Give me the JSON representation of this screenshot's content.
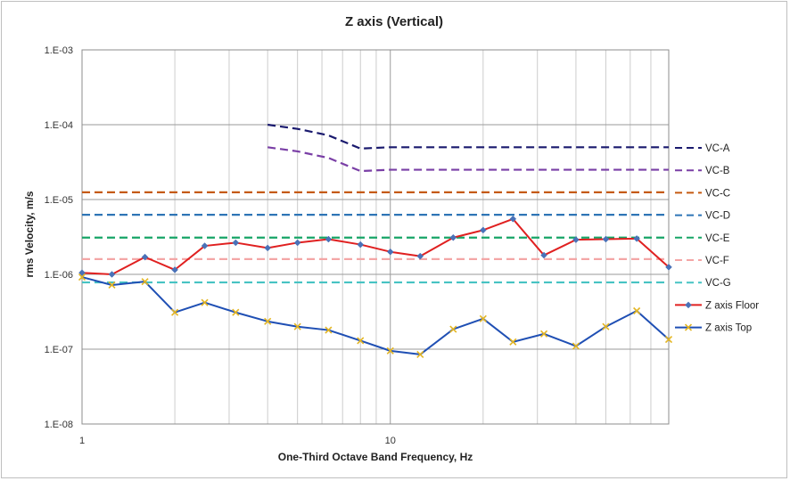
{
  "chart_data": {
    "type": "line",
    "title": "Z axis (Vertical)",
    "xlabel": "One-Third Octave Band Frequency, Hz",
    "ylabel": "rms Velocity, m/s",
    "x_scale": "log",
    "y_scale": "log",
    "xlim": [
      1,
      80
    ],
    "ylim": [
      1e-08,
      0.001
    ],
    "x_tick_labels": [
      {
        "value": 1,
        "label": "1"
      },
      {
        "value": 10,
        "label": "10"
      }
    ],
    "y_tick_labels": [
      {
        "value": 0.001,
        "label": "1.E-03"
      },
      {
        "value": 0.0001,
        "label": "1.E-04"
      },
      {
        "value": 1e-05,
        "label": "1.E-05"
      },
      {
        "value": 1e-06,
        "label": "1.E-06"
      },
      {
        "value": 1e-07,
        "label": "1.E-07"
      },
      {
        "value": 1e-08,
        "label": "1.E-08"
      }
    ],
    "grid": true,
    "legend_position": "right",
    "series": [
      {
        "name": "VC-A",
        "style": "dashed",
        "color": "#1a1a6e",
        "x": [
          4,
          5,
          6.3,
          8,
          10,
          80
        ],
        "values": [
          0.0001,
          8.8e-05,
          7.2e-05,
          4.8e-05,
          5e-05,
          5e-05
        ]
      },
      {
        "name": "VC-B",
        "style": "dashed",
        "color": "#7a3fa6",
        "x": [
          4,
          5,
          6.3,
          8,
          10,
          80
        ],
        "values": [
          5e-05,
          4.4e-05,
          3.6e-05,
          2.4e-05,
          2.5e-05,
          2.5e-05
        ]
      },
      {
        "name": "VC-C",
        "style": "dashed",
        "color": "#c55a11",
        "x": [
          1,
          80
        ],
        "values": [
          1.25e-05,
          1.25e-05
        ]
      },
      {
        "name": "VC-D",
        "style": "dashed",
        "color": "#2e75b6",
        "x": [
          1,
          80
        ],
        "values": [
          6.25e-06,
          6.25e-06
        ]
      },
      {
        "name": "VC-E",
        "style": "dashed",
        "color": "#17a567",
        "x": [
          1,
          80
        ],
        "values": [
          3.1e-06,
          3.1e-06
        ]
      },
      {
        "name": "VC-F",
        "style": "dashed",
        "color": "#f4a6a6",
        "x": [
          1,
          80
        ],
        "values": [
          1.6e-06,
          1.6e-06
        ]
      },
      {
        "name": "VC-G",
        "style": "dashed",
        "color": "#46c3c3",
        "x": [
          1,
          80
        ],
        "values": [
          7.8e-07,
          7.8e-07
        ]
      },
      {
        "name": "Z axis Floor",
        "style": "solid",
        "color": "#e02020",
        "marker": "diamond",
        "marker_color": "#4a72b8",
        "x": [
          1,
          1.25,
          1.6,
          2,
          2.5,
          3.15,
          4,
          5,
          6.3,
          8,
          10,
          12.5,
          16,
          20,
          25,
          31.5,
          40,
          50,
          63,
          80
        ],
        "values": [
          1.05e-06,
          1e-06,
          1.7e-06,
          1.15e-06,
          2.4e-06,
          2.65e-06,
          2.25e-06,
          2.65e-06,
          2.95e-06,
          2.5e-06,
          2e-06,
          1.75e-06,
          3.1e-06,
          3.9e-06,
          5.5e-06,
          1.8e-06,
          2.9e-06,
          2.95e-06,
          3e-06,
          1.25e-06
        ]
      },
      {
        "name": "Z axis Top",
        "style": "solid",
        "color": "#1f4fb4",
        "marker": "x",
        "marker_color": "#e3b522",
        "x": [
          1,
          1.25,
          1.6,
          2,
          2.5,
          3.15,
          4,
          5,
          6.3,
          8,
          10,
          12.5,
          16,
          20,
          25,
          31.5,
          40,
          50,
          63,
          80
        ],
        "values": [
          9.2e-07,
          7.2e-07,
          8e-07,
          3.1e-07,
          4.2e-07,
          3.1e-07,
          2.35e-07,
          2e-07,
          1.8e-07,
          1.3e-07,
          9.5e-08,
          8.5e-08,
          1.85e-07,
          2.55e-07,
          1.25e-07,
          1.6e-07,
          1.1e-07,
          2e-07,
          3.25e-07,
          1.35e-07
        ]
      }
    ]
  }
}
